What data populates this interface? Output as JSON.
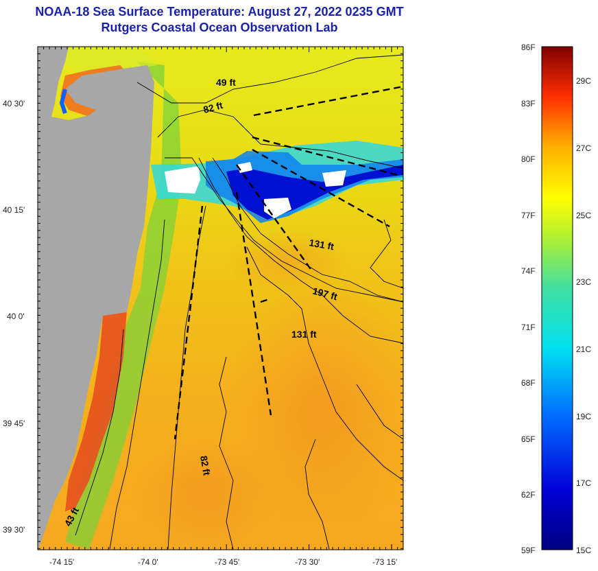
{
  "title": {
    "line1": "NOAA-18 Sea Surface Temperature:  August 27, 2022 0235 GMT",
    "line2": "Rutgers Coastal Ocean Observation Lab"
  },
  "map": {
    "lat_labels": [
      "40 30'",
      "40 15'",
      "40 0'",
      "39 45'",
      "39 30'"
    ],
    "lon_labels": [
      "-74 15'",
      "-74 0'",
      "-73 45'",
      "-73 30'",
      "-73 15'"
    ],
    "depth_labels": [
      "49 ft",
      "82 ft",
      "131 ft",
      "197 ft",
      "131 ft",
      "82 ft",
      "43 ft"
    ]
  },
  "colorbar": {
    "f_labels": [
      "86F",
      "83F",
      "80F",
      "77F",
      "74F",
      "71F",
      "68F",
      "65F",
      "62F",
      "59F"
    ],
    "c_labels": [
      "29C",
      "27C",
      "25C",
      "23C",
      "21C",
      "19C",
      "17C",
      "15C"
    ]
  },
  "colors": {
    "land": "#a7a7a7",
    "cloud": "#ffffff",
    "title": "#1a22a8"
  }
}
